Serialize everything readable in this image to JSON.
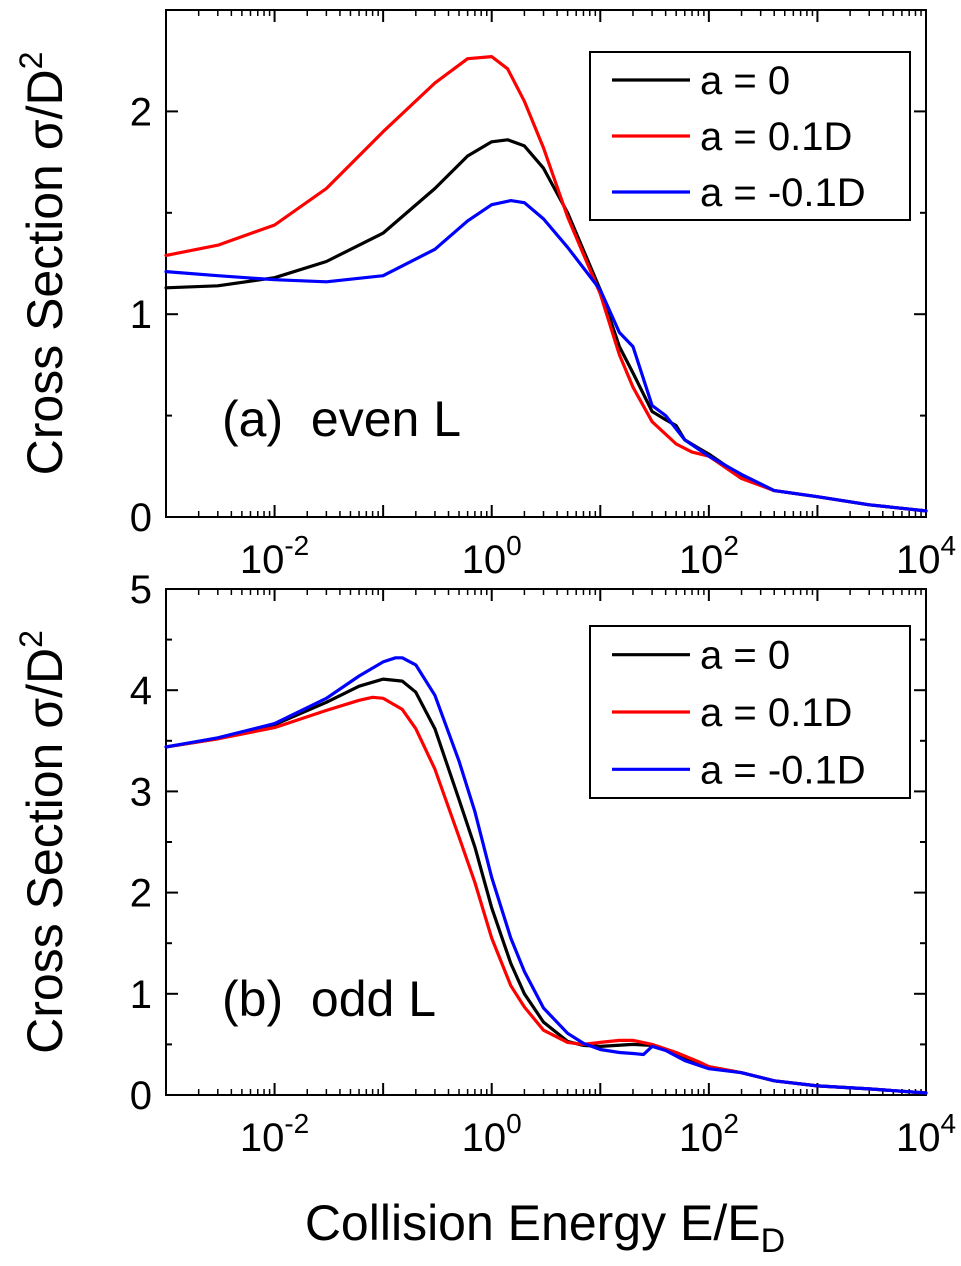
{
  "figure": {
    "xlabel_main": "Collision Energy E/E",
    "xlabel_sub": "D"
  },
  "colors": {
    "a0": "#000000",
    "a01": "#ff0000",
    "am01": "#0000ff"
  },
  "chart_data": [
    {
      "type": "line",
      "panel_label": "(a)  even L",
      "ylabel_main": "Cross Section σ/D",
      "ylabel_sup": "2",
      "xscale": "log",
      "xlim": [
        0.001,
        10000
      ],
      "ylim": [
        0,
        2.5
      ],
      "yticks": [
        "0",
        "1",
        "2"
      ],
      "yticks_values": [
        0,
        1,
        2
      ],
      "xticks": [
        {
          "base": "10",
          "exp": "-2",
          "value": 0.01
        },
        {
          "base": "10",
          "exp": "0",
          "value": 1
        },
        {
          "base": "10",
          "exp": "2",
          "value": 100
        },
        {
          "base": "10",
          "exp": "4",
          "value": 10000
        }
      ],
      "legend_position": "top-right",
      "series": [
        {
          "name": "a = 0",
          "color": "#000000",
          "x": [
            0.001,
            0.003,
            0.01,
            0.03,
            0.1,
            0.3,
            0.6,
            1,
            1.4,
            2,
            3,
            5,
            10,
            15,
            20,
            30,
            40,
            50,
            60,
            80,
            100,
            200,
            400,
            1000,
            3000,
            10000
          ],
          "y": [
            1.13,
            1.14,
            1.18,
            1.26,
            1.4,
            1.62,
            1.78,
            1.85,
            1.86,
            1.83,
            1.72,
            1.5,
            1.12,
            0.84,
            0.71,
            0.52,
            0.48,
            0.45,
            0.38,
            0.34,
            0.31,
            0.2,
            0.13,
            0.1,
            0.06,
            0.03
          ]
        },
        {
          "name": "a = 0.1D",
          "color": "#ff0000",
          "x": [
            0.001,
            0.003,
            0.01,
            0.03,
            0.1,
            0.3,
            0.6,
            1,
            1.4,
            2,
            3,
            5,
            10,
            15,
            20,
            30,
            50,
            70,
            100,
            200,
            400,
            1000,
            3000,
            10000
          ],
          "y": [
            1.29,
            1.34,
            1.44,
            1.62,
            1.9,
            2.14,
            2.26,
            2.27,
            2.21,
            2.05,
            1.82,
            1.48,
            1.1,
            0.8,
            0.64,
            0.47,
            0.36,
            0.32,
            0.3,
            0.19,
            0.13,
            0.1,
            0.06,
            0.03
          ]
        },
        {
          "name": "a = -0.1D",
          "color": "#0000ff",
          "x": [
            0.001,
            0.003,
            0.01,
            0.03,
            0.1,
            0.3,
            0.6,
            1,
            1.5,
            2,
            3,
            5,
            10,
            15,
            20,
            30,
            40,
            60,
            100,
            200,
            400,
            1000,
            3000,
            10000
          ],
          "y": [
            1.21,
            1.19,
            1.17,
            1.16,
            1.19,
            1.32,
            1.46,
            1.54,
            1.56,
            1.55,
            1.47,
            1.33,
            1.12,
            0.91,
            0.84,
            0.55,
            0.5,
            0.38,
            0.3,
            0.21,
            0.13,
            0.1,
            0.06,
            0.03
          ]
        }
      ]
    },
    {
      "type": "line",
      "panel_label": "(b)  odd L",
      "ylabel_main": "Cross Section σ/D",
      "ylabel_sup": "2",
      "xscale": "log",
      "xlim": [
        0.001,
        10000
      ],
      "ylim": [
        0,
        5
      ],
      "yticks": [
        "0",
        "1",
        "2",
        "3",
        "4",
        "5"
      ],
      "yticks_values": [
        0,
        1,
        2,
        3,
        4,
        5
      ],
      "xticks": [
        {
          "base": "10",
          "exp": "-2",
          "value": 0.01
        },
        {
          "base": "10",
          "exp": "0",
          "value": 1
        },
        {
          "base": "10",
          "exp": "2",
          "value": 100
        },
        {
          "base": "10",
          "exp": "4",
          "value": 10000
        }
      ],
      "legend_position": "top-right",
      "series": [
        {
          "name": "a = 0",
          "color": "#000000",
          "x": [
            0.001,
            0.003,
            0.01,
            0.03,
            0.06,
            0.1,
            0.15,
            0.2,
            0.3,
            0.5,
            0.7,
            1,
            1.5,
            2,
            3,
            5,
            7,
            10,
            20,
            30,
            40,
            60,
            100,
            200,
            400,
            1000,
            3000,
            10000
          ],
          "y": [
            3.44,
            3.52,
            3.66,
            3.88,
            4.04,
            4.11,
            4.09,
            3.98,
            3.62,
            2.92,
            2.45,
            1.85,
            1.3,
            1.0,
            0.72,
            0.53,
            0.49,
            0.48,
            0.5,
            0.49,
            0.45,
            0.36,
            0.28,
            0.22,
            0.14,
            0.09,
            0.06,
            0.02
          ]
        },
        {
          "name": "a = 0.1D",
          "color": "#ff0000",
          "x": [
            0.001,
            0.003,
            0.01,
            0.03,
            0.06,
            0.08,
            0.1,
            0.15,
            0.2,
            0.3,
            0.5,
            0.7,
            1,
            1.5,
            2,
            3,
            5,
            7,
            10,
            15,
            20,
            30,
            50,
            80,
            100,
            200,
            400,
            1000,
            3000,
            10000
          ],
          "y": [
            3.44,
            3.52,
            3.63,
            3.8,
            3.9,
            3.93,
            3.92,
            3.81,
            3.62,
            3.22,
            2.55,
            2.1,
            1.55,
            1.08,
            0.87,
            0.64,
            0.52,
            0.5,
            0.52,
            0.54,
            0.54,
            0.5,
            0.42,
            0.33,
            0.28,
            0.22,
            0.14,
            0.09,
            0.06,
            0.02
          ]
        },
        {
          "name": "a = -0.1D",
          "color": "#0000ff",
          "x": [
            0.001,
            0.003,
            0.01,
            0.03,
            0.06,
            0.1,
            0.13,
            0.15,
            0.2,
            0.3,
            0.5,
            0.7,
            1,
            1.5,
            2,
            3,
            5,
            7,
            10,
            15,
            20,
            25,
            30,
            40,
            60,
            100,
            200,
            400,
            1000,
            3000,
            10000
          ],
          "y": [
            3.44,
            3.53,
            3.67,
            3.92,
            4.14,
            4.28,
            4.32,
            4.32,
            4.25,
            3.95,
            3.3,
            2.8,
            2.15,
            1.55,
            1.22,
            0.86,
            0.61,
            0.51,
            0.45,
            0.42,
            0.41,
            0.4,
            0.48,
            0.44,
            0.34,
            0.26,
            0.22,
            0.14,
            0.09,
            0.06,
            0.02
          ]
        }
      ]
    }
  ]
}
